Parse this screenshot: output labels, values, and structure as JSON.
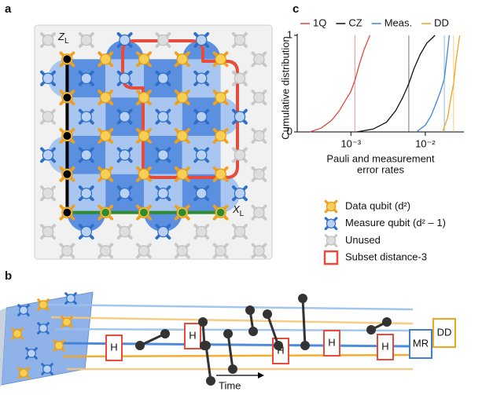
{
  "panel_labels": [
    "a",
    "b",
    "c"
  ],
  "lattice": {
    "z_label": {
      "main": "Z",
      "sub": "L"
    },
    "x_label": {
      "main": "X",
      "sub": "L"
    }
  },
  "legend": [
    "Data qubit (d²)",
    "Measure qubit (d² – 1)",
    "Unused",
    "Subset distance-3"
  ],
  "circuit": {
    "gates": [
      "H",
      "H",
      "H",
      "H",
      "H"
    ],
    "readout": [
      "MR",
      "DD"
    ],
    "time": "Time"
  },
  "chart_data": {
    "type": "line",
    "log_x": true,
    "xlabel": [
      "Pauli and measurement",
      "error rates"
    ],
    "ylabel": "Cumulative distribution",
    "xlim": [
      0.00019,
      0.033
    ],
    "ylim": [
      0,
      1
    ],
    "xticks": [
      {
        "value": 0.001,
        "label": "10⁻³"
      },
      {
        "value": 0.01,
        "label": "10⁻²"
      }
    ],
    "yticks": [
      0,
      1
    ],
    "legend": "top",
    "series": [
      {
        "name": "1Q",
        "color": "#e0473c",
        "median": 0.00113,
        "x": [
          0.00028,
          0.0004,
          0.00055,
          0.0007,
          0.00085,
          0.001,
          0.00115,
          0.0013,
          0.0015,
          0.0018
        ],
        "values": [
          0,
          0.04,
          0.12,
          0.22,
          0.33,
          0.42,
          0.55,
          0.7,
          0.85,
          1
        ]
      },
      {
        "name": "CZ",
        "color": "#111111",
        "median": 0.006,
        "x": [
          0.0012,
          0.002,
          0.003,
          0.004,
          0.005,
          0.006,
          0.007,
          0.0085,
          0.0105,
          0.0135
        ],
        "values": [
          0,
          0.03,
          0.1,
          0.22,
          0.36,
          0.5,
          0.65,
          0.8,
          0.92,
          1
        ]
      },
      {
        "name": "Meas.",
        "color": "#3d86d6",
        "median": 0.018,
        "x": [
          0.0076,
          0.01,
          0.012,
          0.014,
          0.016,
          0.018,
          0.0195,
          0.021
        ],
        "values": [
          0,
          0.07,
          0.17,
          0.3,
          0.42,
          0.55,
          0.78,
          1
        ]
      },
      {
        "name": "DD",
        "color": "#f2a51a",
        "median": 0.024,
        "x": [
          0.017,
          0.02,
          0.022,
          0.024,
          0.026,
          0.029
        ],
        "values": [
          0,
          0.15,
          0.35,
          0.5,
          0.75,
          1
        ]
      }
    ]
  }
}
